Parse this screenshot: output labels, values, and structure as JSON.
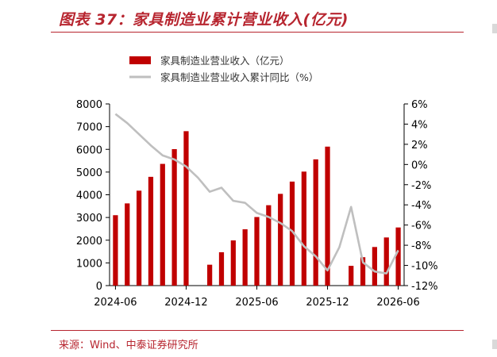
{
  "title": "图表 37：家具制造业累计营业收入(亿元)",
  "source": "来源：Wind、中泰证券研究所",
  "colors": {
    "bar": "#c00000",
    "line": "#bfbfbf",
    "title": "#b7252f"
  },
  "chart_data": {
    "type": "bar",
    "series": [
      {
        "name": "家具制造业营业收入（亿元）",
        "type": "bar",
        "axis": "left",
        "values": [
          3100,
          3620,
          4180,
          4790,
          5360,
          6010,
          6800,
          null,
          920,
          1470,
          1990,
          2480,
          3020,
          3540,
          4040,
          4580,
          5020,
          5560,
          6120,
          null,
          870,
          1250,
          1700,
          2120,
          2560
        ]
      },
      {
        "name": "家具制造业营业收入累计同比（%）",
        "type": "line",
        "axis": "right",
        "values": [
          5.0,
          4.1,
          3.0,
          1.9,
          0.9,
          0.5,
          -0.2,
          -1.3,
          -2.7,
          -2.3,
          -3.6,
          -3.8,
          -4.8,
          -5.2,
          -5.8,
          -6.6,
          -8.1,
          -9.1,
          -10.5,
          -8.2,
          -4.2,
          -9.7,
          -10.6,
          -10.8,
          -8.5
        ]
      }
    ],
    "ylim_left": [
      0,
      8000
    ],
    "ylim_right": [
      -12,
      6
    ],
    "yticks_left": [
      "0",
      "1000",
      "2000",
      "3000",
      "4000",
      "5000",
      "6000",
      "7000",
      "8000"
    ],
    "yticks_right": [
      "-12%",
      "-10%",
      "-8%",
      "-6%",
      "-4%",
      "-2%",
      "0%",
      "2%",
      "4%",
      "6%"
    ],
    "xtick_labels": [
      "2024-06",
      "2024-12",
      "2025-06",
      "2025-12",
      "2026-06"
    ],
    "xtick_index": [
      0,
      6,
      12,
      18,
      24
    ],
    "legend": "top-left",
    "grid": false
  }
}
